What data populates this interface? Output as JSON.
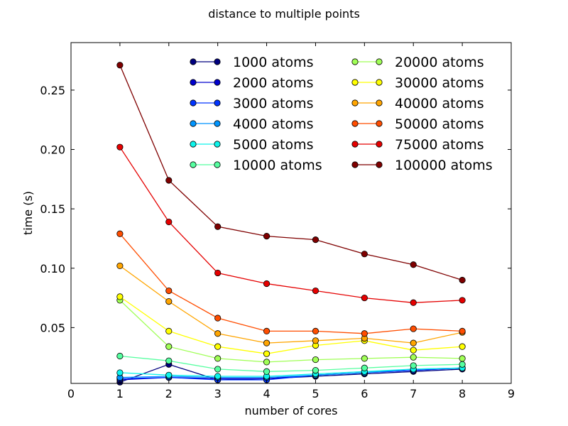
{
  "chart_data": {
    "type": "line",
    "title": "distance to multiple points",
    "xlabel": "number of cores",
    "ylabel": "time (s)",
    "xlim": [
      0,
      9
    ],
    "ylim": [
      0.003,
      0.29
    ],
    "x_ticks": [
      0,
      1,
      2,
      3,
      4,
      5,
      6,
      7,
      8,
      9
    ],
    "y_ticks": [
      0.05,
      0.1,
      0.15,
      0.2,
      0.25
    ],
    "y_tick_labels": [
      "0.05",
      "0.10",
      "0.15",
      "0.20",
      "0.25"
    ],
    "grid": false,
    "legend_position": "top-right",
    "legend_columns": 2,
    "x": [
      1,
      2,
      3,
      4,
      5,
      6,
      7,
      8
    ],
    "series": [
      {
        "name": "1000 atoms",
        "color": "#00007f",
        "values": [
          0.004,
          0.019,
          0.006,
          0.007,
          0.009,
          0.011,
          0.013,
          0.015
        ]
      },
      {
        "name": "2000 atoms",
        "color": "#0000cd",
        "values": [
          0.006,
          0.008,
          0.007,
          0.007,
          0.01,
          0.012,
          0.014,
          0.016
        ]
      },
      {
        "name": "3000 atoms",
        "color": "#0033ff",
        "values": [
          0.007,
          0.008,
          0.006,
          0.006,
          0.01,
          0.012,
          0.014,
          0.016
        ]
      },
      {
        "name": "4000 atoms",
        "color": "#0095ff",
        "values": [
          0.008,
          0.009,
          0.008,
          0.008,
          0.01,
          0.012,
          0.015,
          0.016
        ]
      },
      {
        "name": "5000 atoms",
        "color": "#0cf4eb",
        "values": [
          0.012,
          0.01,
          0.009,
          0.009,
          0.011,
          0.013,
          0.015,
          0.016
        ]
      },
      {
        "name": "10000 atoms",
        "color": "#56ffa0",
        "values": [
          0.026,
          0.022,
          0.015,
          0.013,
          0.014,
          0.016,
          0.018,
          0.019
        ]
      },
      {
        "name": "20000 atoms",
        "color": "#a0ff56",
        "values": [
          0.073,
          0.034,
          0.024,
          0.021,
          0.023,
          0.024,
          0.025,
          0.024
        ]
      },
      {
        "name": "30000 atoms",
        "color": "#ffff00",
        "values": [
          0.076,
          0.047,
          0.034,
          0.028,
          0.035,
          0.039,
          0.031,
          0.034
        ]
      },
      {
        "name": "40000 atoms",
        "color": "#ffa500",
        "values": [
          0.102,
          0.072,
          0.045,
          0.037,
          0.039,
          0.041,
          0.037,
          0.046
        ]
      },
      {
        "name": "50000 atoms",
        "color": "#ff4d00",
        "values": [
          0.129,
          0.081,
          0.058,
          0.047,
          0.047,
          0.045,
          0.049,
          0.047
        ]
      },
      {
        "name": "75000 atoms",
        "color": "#e50000",
        "values": [
          0.202,
          0.139,
          0.096,
          0.087,
          0.081,
          0.075,
          0.071,
          0.073
        ]
      },
      {
        "name": "100000 atoms",
        "color": "#7f0000",
        "values": [
          0.271,
          0.174,
          0.135,
          0.127,
          0.124,
          0.112,
          0.103,
          0.09
        ]
      }
    ]
  }
}
